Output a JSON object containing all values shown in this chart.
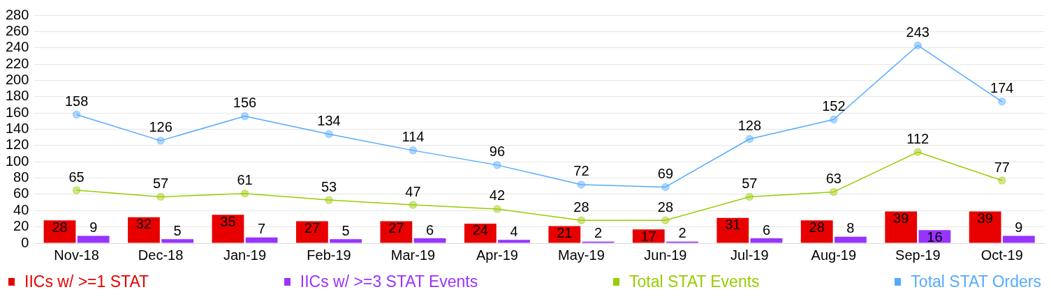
{
  "chart_data": {
    "type": "bar",
    "categories": [
      "Nov-18",
      "Dec-18",
      "Jan-19",
      "Feb-19",
      "Mar-19",
      "Apr-19",
      "May-19",
      "Jun-19",
      "Jul-19",
      "Aug-19",
      "Sep-19",
      "Oct-19"
    ],
    "series": [
      {
        "name": "IICs w/ >=1 STAT",
        "color": "#e80000",
        "values": [
          28,
          32,
          35,
          27,
          27,
          24,
          21,
          17,
          31,
          28,
          39,
          39
        ]
      },
      {
        "name": "IICs w/ >=3 STAT Events",
        "color": "#9933ff",
        "values": [
          9,
          5,
          7,
          5,
          6,
          4,
          2,
          2,
          6,
          8,
          16,
          9
        ]
      },
      {
        "name": "Total STAT Events",
        "type": "line",
        "color": "#99cc00",
        "values": [
          65,
          57,
          61,
          53,
          47,
          42,
          28,
          28,
          57,
          63,
          112,
          77
        ]
      },
      {
        "name": "Total STAT Orders",
        "type": "line",
        "color": "#55aaff",
        "values": [
          158,
          126,
          156,
          134,
          114,
          96,
          72,
          69,
          128,
          152,
          243,
          174
        ]
      }
    ],
    "ylim": [
      0,
      280
    ],
    "yticks": [
      0,
      20,
      40,
      60,
      80,
      100,
      120,
      140,
      160,
      180,
      200,
      220,
      240,
      260,
      280
    ],
    "grid": "y",
    "legend": "bottom",
    "marker": "circle",
    "data_labels": true
  }
}
